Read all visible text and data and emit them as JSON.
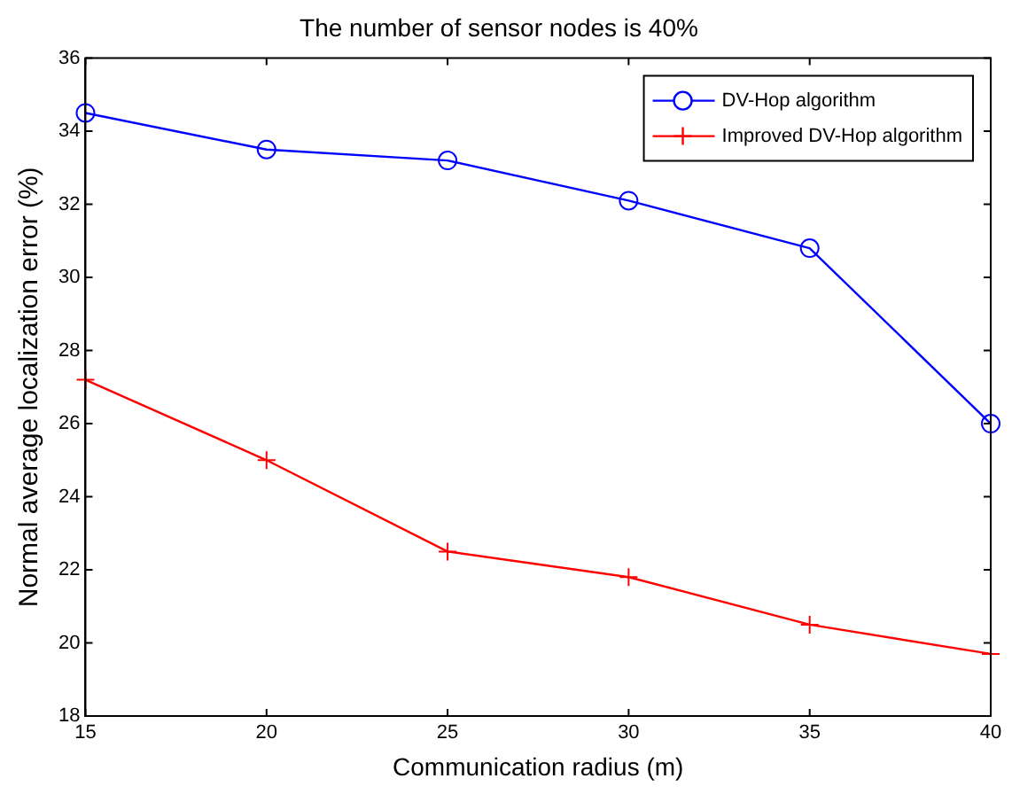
{
  "chart_data": {
    "type": "line",
    "title": "The number of sensor nodes is 40%",
    "xlabel": "Communication radius (m)",
    "ylabel": "Normal average localization error (%)",
    "x": [
      15,
      20,
      25,
      30,
      35,
      40
    ],
    "series": [
      {
        "name": "DV-Hop algorithm",
        "color": "#0000ff",
        "marker": "circle",
        "values": [
          34.5,
          33.5,
          33.2,
          32.1,
          30.8,
          26.0
        ]
      },
      {
        "name": "Improved DV-Hop algorithm",
        "color": "#ff0000",
        "marker": "cross",
        "values": [
          27.2,
          25.0,
          22.5,
          21.8,
          20.5,
          19.7
        ]
      }
    ],
    "xlim": [
      15,
      40
    ],
    "xticks": [
      15,
      20,
      25,
      30,
      35,
      40
    ],
    "ylim": [
      18,
      36
    ],
    "yticks": [
      18,
      20,
      22,
      24,
      26,
      28,
      30,
      32,
      34,
      36
    ],
    "grid": false,
    "legend": "top right",
    "line_style": "solid"
  }
}
